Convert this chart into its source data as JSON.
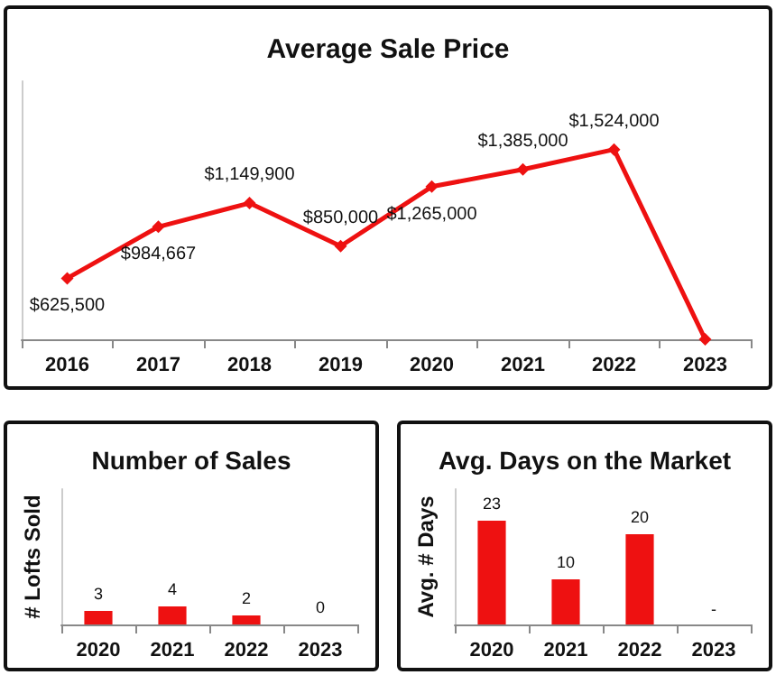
{
  "chart_data": [
    {
      "type": "line",
      "title": "Average Sale Price",
      "categories": [
        "2016",
        "2017",
        "2018",
        "2019",
        "2020",
        "2021",
        "2022",
        "2023"
      ],
      "values": [
        625500,
        984667,
        1149900,
        850000,
        1265000,
        1385000,
        1524000,
        200000
      ],
      "value_labels": [
        "$625,500",
        "$984,667",
        "$1,149,900",
        "$850,000",
        "$1,265,000",
        "$1,385,000",
        "$1,524,000",
        null
      ],
      "color": "#ee1111",
      "marker": "diamond",
      "ylim": [
        200000,
        2000000
      ]
    },
    {
      "type": "bar",
      "title": "Number of Sales",
      "ylabel": "# Lofts Sold",
      "categories": [
        "2020",
        "2021",
        "2022",
        "2023"
      ],
      "values": [
        3,
        4,
        2,
        0
      ],
      "value_labels": [
        "3",
        "4",
        "2",
        "0"
      ],
      "color": "#ee1111",
      "ylim": [
        0,
        30
      ]
    },
    {
      "type": "bar",
      "title": "Avg. Days on the Market",
      "ylabel": "Avg. # Days",
      "categories": [
        "2020",
        "2021",
        "2022",
        "2023"
      ],
      "values": [
        23,
        10,
        20,
        null
      ],
      "value_labels": [
        "23",
        "10",
        "20",
        "-"
      ],
      "color": "#ee1111",
      "ylim": [
        0,
        30
      ]
    }
  ]
}
